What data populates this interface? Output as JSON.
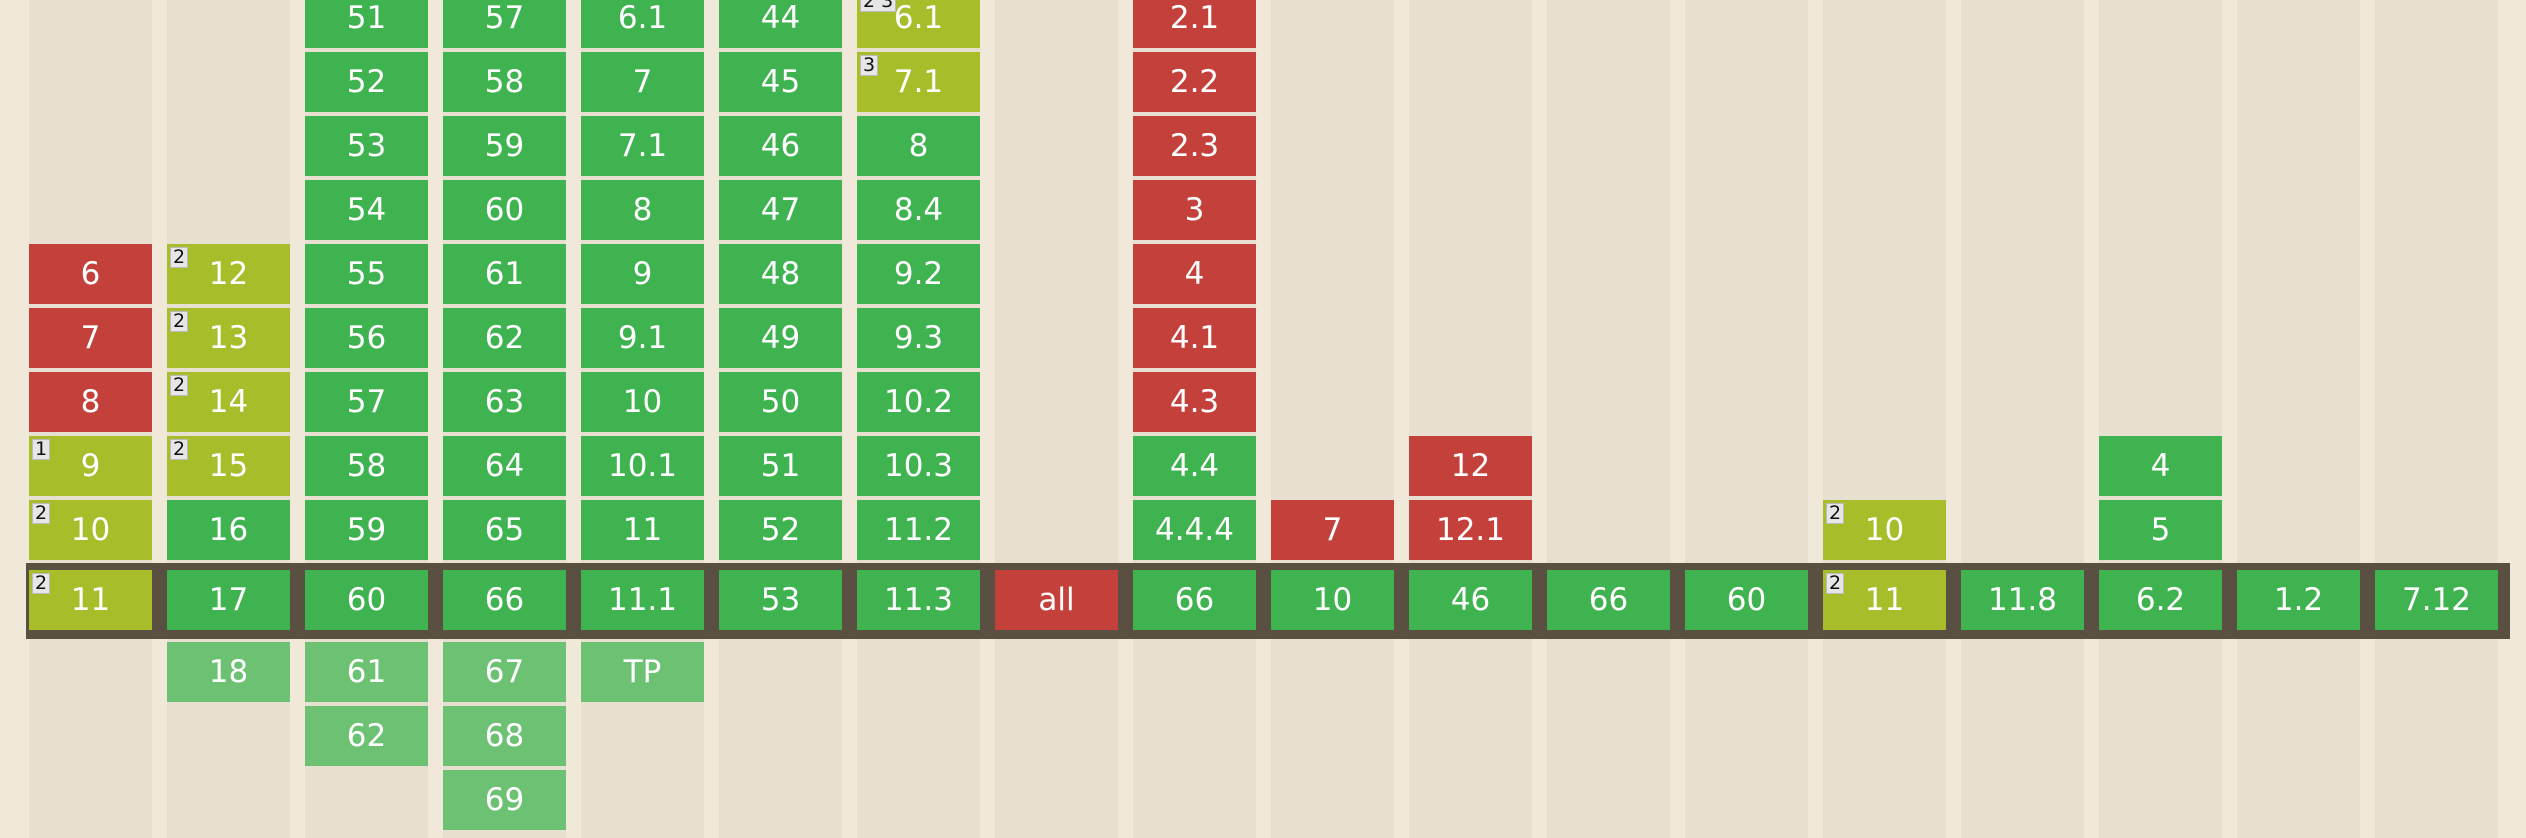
{
  "support_table": {
    "colors": {
      "supported": "#3eb34f",
      "not_supported": "#c4403a",
      "partial": "#a7bd29",
      "future": "#6cc173",
      "current_row_band": "#5a5042",
      "background": "#f0e8d8"
    },
    "columns": [
      {
        "past": [
          {
            "v": "6",
            "s": "n"
          },
          {
            "v": "7",
            "s": "n"
          },
          {
            "v": "8",
            "s": "n"
          },
          {
            "v": "9",
            "s": "a",
            "note": "1"
          },
          {
            "v": "10",
            "s": "a",
            "note": "2"
          }
        ],
        "current": {
          "v": "11",
          "s": "a",
          "note": "2"
        },
        "future": []
      },
      {
        "past": [
          {
            "v": "12",
            "s": "a",
            "note": "2"
          },
          {
            "v": "13",
            "s": "a",
            "note": "2"
          },
          {
            "v": "14",
            "s": "a",
            "note": "2"
          },
          {
            "v": "15",
            "s": "a",
            "note": "2"
          },
          {
            "v": "16",
            "s": "y"
          }
        ],
        "current": {
          "v": "17",
          "s": "y"
        },
        "future": [
          {
            "v": "18",
            "s": "f"
          }
        ]
      },
      {
        "past": [
          {
            "v": "51",
            "s": "y"
          },
          {
            "v": "52",
            "s": "y"
          },
          {
            "v": "53",
            "s": "y"
          },
          {
            "v": "54",
            "s": "y"
          },
          {
            "v": "55",
            "s": "y"
          },
          {
            "v": "56",
            "s": "y"
          },
          {
            "v": "57",
            "s": "y"
          },
          {
            "v": "58",
            "s": "y"
          },
          {
            "v": "59",
            "s": "y"
          }
        ],
        "current": {
          "v": "60",
          "s": "y"
        },
        "future": [
          {
            "v": "61",
            "s": "f"
          },
          {
            "v": "62",
            "s": "f"
          }
        ]
      },
      {
        "past": [
          {
            "v": "57",
            "s": "y"
          },
          {
            "v": "58",
            "s": "y"
          },
          {
            "v": "59",
            "s": "y"
          },
          {
            "v": "60",
            "s": "y"
          },
          {
            "v": "61",
            "s": "y"
          },
          {
            "v": "62",
            "s": "y"
          },
          {
            "v": "63",
            "s": "y"
          },
          {
            "v": "64",
            "s": "y"
          },
          {
            "v": "65",
            "s": "y"
          }
        ],
        "current": {
          "v": "66",
          "s": "y"
        },
        "future": [
          {
            "v": "67",
            "s": "f"
          },
          {
            "v": "68",
            "s": "f"
          },
          {
            "v": "69",
            "s": "f"
          }
        ]
      },
      {
        "past": [
          {
            "v": "6.1",
            "s": "y"
          },
          {
            "v": "7",
            "s": "y"
          },
          {
            "v": "7.1",
            "s": "y"
          },
          {
            "v": "8",
            "s": "y"
          },
          {
            "v": "9",
            "s": "y"
          },
          {
            "v": "9.1",
            "s": "y"
          },
          {
            "v": "10",
            "s": "y"
          },
          {
            "v": "10.1",
            "s": "y"
          },
          {
            "v": "11",
            "s": "y"
          }
        ],
        "current": {
          "v": "11.1",
          "s": "y"
        },
        "future": [
          {
            "v": "TP",
            "s": "f"
          }
        ]
      },
      {
        "past": [
          {
            "v": "44",
            "s": "y"
          },
          {
            "v": "45",
            "s": "y"
          },
          {
            "v": "46",
            "s": "y"
          },
          {
            "v": "47",
            "s": "y"
          },
          {
            "v": "48",
            "s": "y"
          },
          {
            "v": "49",
            "s": "y"
          },
          {
            "v": "50",
            "s": "y"
          },
          {
            "v": "51",
            "s": "y"
          },
          {
            "v": "52",
            "s": "y"
          }
        ],
        "current": {
          "v": "53",
          "s": "y"
        },
        "future": []
      },
      {
        "past": [
          {
            "v": "6.1",
            "s": "a",
            "note": "2 3"
          },
          {
            "v": "7.1",
            "s": "a",
            "note": "3"
          },
          {
            "v": "8",
            "s": "y"
          },
          {
            "v": "8.4",
            "s": "y"
          },
          {
            "v": "9.2",
            "s": "y"
          },
          {
            "v": "9.3",
            "s": "y"
          },
          {
            "v": "10.2",
            "s": "y"
          },
          {
            "v": "10.3",
            "s": "y"
          },
          {
            "v": "11.2",
            "s": "y"
          }
        ],
        "current": {
          "v": "11.3",
          "s": "y"
        },
        "future": []
      },
      {
        "past": [],
        "current": {
          "v": "all",
          "s": "n"
        },
        "future": []
      },
      {
        "past": [
          {
            "v": "2.1",
            "s": "n"
          },
          {
            "v": "2.2",
            "s": "n"
          },
          {
            "v": "2.3",
            "s": "n"
          },
          {
            "v": "3",
            "s": "n"
          },
          {
            "v": "4",
            "s": "n"
          },
          {
            "v": "4.1",
            "s": "n"
          },
          {
            "v": "4.3",
            "s": "n"
          },
          {
            "v": "4.4",
            "s": "y"
          },
          {
            "v": "4.4.4",
            "s": "y"
          }
        ],
        "current": {
          "v": "66",
          "s": "y"
        },
        "future": []
      },
      {
        "past": [
          {
            "v": "7",
            "s": "n"
          }
        ],
        "current": {
          "v": "10",
          "s": "y"
        },
        "future": []
      },
      {
        "past": [
          {
            "v": "12",
            "s": "n"
          },
          {
            "v": "12.1",
            "s": "n"
          }
        ],
        "current": {
          "v": "46",
          "s": "y"
        },
        "future": []
      },
      {
        "past": [],
        "current": {
          "v": "66",
          "s": "y"
        },
        "future": []
      },
      {
        "past": [],
        "current": {
          "v": "60",
          "s": "y"
        },
        "future": []
      },
      {
        "past": [
          {
            "v": "10",
            "s": "a",
            "note": "2"
          }
        ],
        "current": {
          "v": "11",
          "s": "a",
          "note": "2"
        },
        "future": []
      },
      {
        "past": [],
        "current": {
          "v": "11.8",
          "s": "y"
        },
        "future": []
      },
      {
        "past": [
          {
            "v": "4",
            "s": "y"
          },
          {
            "v": "5",
            "s": "y"
          }
        ],
        "current": {
          "v": "6.2",
          "s": "y"
        },
        "future": []
      },
      {
        "past": [],
        "current": {
          "v": "1.2",
          "s": "y"
        },
        "future": []
      },
      {
        "past": [],
        "current": {
          "v": "7.12",
          "s": "y"
        },
        "future": []
      }
    ]
  }
}
